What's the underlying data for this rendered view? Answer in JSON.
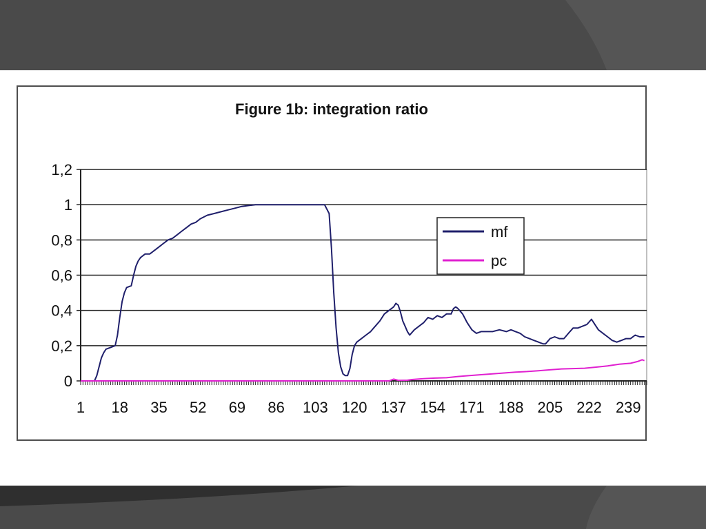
{
  "slide": {
    "band_color": "#4a4a4a",
    "background": "#ffffff"
  },
  "chart_data": {
    "type": "line",
    "title": "Figure 1b: integration ratio",
    "xlabel": "",
    "ylabel": "",
    "ylim": [
      0,
      1.2
    ],
    "xlim": [
      1,
      247
    ],
    "y_ticks": [
      "0",
      "0,2",
      "0,4",
      "0,6",
      "0,8",
      "1",
      "1,2"
    ],
    "y_tick_values": [
      0,
      0.2,
      0.4,
      0.6,
      0.8,
      1.0,
      1.2
    ],
    "x_ticks": [
      "1",
      "18",
      "35",
      "52",
      "69",
      "86",
      "103",
      "120",
      "137",
      "154",
      "171",
      "188",
      "205",
      "222",
      "239"
    ],
    "x_tick_values": [
      1,
      18,
      35,
      52,
      69,
      86,
      103,
      120,
      137,
      154,
      171,
      188,
      205,
      222,
      239
    ],
    "grid": true,
    "legend_position": "top-right",
    "series": [
      {
        "name": "mf",
        "color": "#1f1f6b",
        "points": [
          [
            1,
            0
          ],
          [
            5,
            0
          ],
          [
            7,
            0
          ],
          [
            8,
            0.03
          ],
          [
            9,
            0.08
          ],
          [
            10,
            0.13
          ],
          [
            11,
            0.16
          ],
          [
            12,
            0.18
          ],
          [
            14,
            0.19
          ],
          [
            16,
            0.2
          ],
          [
            17,
            0.26
          ],
          [
            18,
            0.36
          ],
          [
            19,
            0.45
          ],
          [
            20,
            0.5
          ],
          [
            21,
            0.53
          ],
          [
            23,
            0.54
          ],
          [
            24,
            0.6
          ],
          [
            25,
            0.65
          ],
          [
            26,
            0.68
          ],
          [
            27,
            0.7
          ],
          [
            29,
            0.72
          ],
          [
            31,
            0.72
          ],
          [
            33,
            0.74
          ],
          [
            35,
            0.76
          ],
          [
            37,
            0.78
          ],
          [
            39,
            0.8
          ],
          [
            41,
            0.81
          ],
          [
            43,
            0.83
          ],
          [
            45,
            0.85
          ],
          [
            47,
            0.87
          ],
          [
            49,
            0.89
          ],
          [
            51,
            0.9
          ],
          [
            53,
            0.92
          ],
          [
            56,
            0.94
          ],
          [
            59,
            0.95
          ],
          [
            62,
            0.96
          ],
          [
            65,
            0.97
          ],
          [
            68,
            0.98
          ],
          [
            71,
            0.99
          ],
          [
            74,
            0.995
          ],
          [
            77,
            1.0
          ],
          [
            80,
            1.0
          ],
          [
            86,
            1.0
          ],
          [
            95,
            1.0
          ],
          [
            103,
            1.0
          ],
          [
            107,
            1.0
          ],
          [
            109,
            0.95
          ],
          [
            110,
            0.75
          ],
          [
            111,
            0.5
          ],
          [
            112,
            0.3
          ],
          [
            113,
            0.16
          ],
          [
            114,
            0.08
          ],
          [
            115,
            0.04
          ],
          [
            116,
            0.03
          ],
          [
            117,
            0.03
          ],
          [
            118,
            0.07
          ],
          [
            119,
            0.15
          ],
          [
            120,
            0.2
          ],
          [
            121,
            0.22
          ],
          [
            123,
            0.24
          ],
          [
            125,
            0.26
          ],
          [
            127,
            0.28
          ],
          [
            129,
            0.31
          ],
          [
            131,
            0.34
          ],
          [
            133,
            0.38
          ],
          [
            135,
            0.4
          ],
          [
            137,
            0.42
          ],
          [
            138,
            0.44
          ],
          [
            139,
            0.43
          ],
          [
            140,
            0.39
          ],
          [
            141,
            0.34
          ],
          [
            142,
            0.31
          ],
          [
            143,
            0.28
          ],
          [
            144,
            0.26
          ],
          [
            146,
            0.29
          ],
          [
            148,
            0.31
          ],
          [
            150,
            0.33
          ],
          [
            152,
            0.36
          ],
          [
            154,
            0.35
          ],
          [
            156,
            0.37
          ],
          [
            158,
            0.36
          ],
          [
            160,
            0.38
          ],
          [
            162,
            0.38
          ],
          [
            163,
            0.41
          ],
          [
            164,
            0.42
          ],
          [
            165,
            0.41
          ],
          [
            167,
            0.38
          ],
          [
            169,
            0.33
          ],
          [
            171,
            0.29
          ],
          [
            173,
            0.27
          ],
          [
            175,
            0.28
          ],
          [
            177,
            0.28
          ],
          [
            180,
            0.28
          ],
          [
            183,
            0.29
          ],
          [
            186,
            0.28
          ],
          [
            188,
            0.29
          ],
          [
            190,
            0.28
          ],
          [
            192,
            0.27
          ],
          [
            194,
            0.25
          ],
          [
            196,
            0.24
          ],
          [
            198,
            0.23
          ],
          [
            200,
            0.22
          ],
          [
            202,
            0.21
          ],
          [
            203,
            0.21
          ],
          [
            205,
            0.24
          ],
          [
            207,
            0.25
          ],
          [
            209,
            0.24
          ],
          [
            211,
            0.24
          ],
          [
            213,
            0.27
          ],
          [
            215,
            0.3
          ],
          [
            217,
            0.3
          ],
          [
            219,
            0.31
          ],
          [
            221,
            0.32
          ],
          [
            223,
            0.35
          ],
          [
            224,
            0.33
          ],
          [
            226,
            0.29
          ],
          [
            228,
            0.27
          ],
          [
            230,
            0.25
          ],
          [
            232,
            0.23
          ],
          [
            234,
            0.22
          ],
          [
            236,
            0.23
          ],
          [
            238,
            0.24
          ],
          [
            240,
            0.24
          ],
          [
            242,
            0.26
          ],
          [
            244,
            0.25
          ],
          [
            246,
            0.25
          ]
        ]
      },
      {
        "name": "pc",
        "color": "#e020d0",
        "points": [
          [
            1,
            0
          ],
          [
            20,
            0
          ],
          [
            60,
            0
          ],
          [
            100,
            0
          ],
          [
            120,
            0
          ],
          [
            135,
            0
          ],
          [
            137,
            0.01
          ],
          [
            139,
            0.003
          ],
          [
            143,
            0.004
          ],
          [
            145,
            0.008
          ],
          [
            150,
            0.013
          ],
          [
            155,
            0.016
          ],
          [
            160,
            0.018
          ],
          [
            165,
            0.025
          ],
          [
            170,
            0.03
          ],
          [
            175,
            0.035
          ],
          [
            180,
            0.04
          ],
          [
            185,
            0.045
          ],
          [
            190,
            0.05
          ],
          [
            195,
            0.053
          ],
          [
            200,
            0.058
          ],
          [
            205,
            0.063
          ],
          [
            210,
            0.068
          ],
          [
            215,
            0.07
          ],
          [
            220,
            0.072
          ],
          [
            225,
            0.078
          ],
          [
            230,
            0.085
          ],
          [
            235,
            0.095
          ],
          [
            240,
            0.1
          ],
          [
            243,
            0.11
          ],
          [
            245,
            0.12
          ],
          [
            246,
            0.115
          ]
        ]
      }
    ]
  }
}
